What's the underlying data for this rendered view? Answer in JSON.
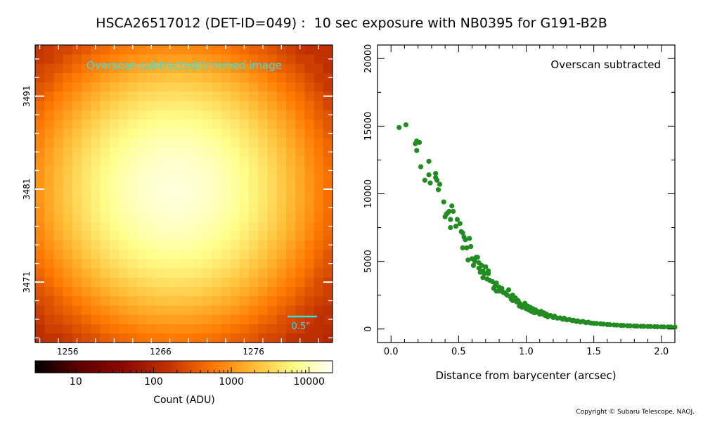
{
  "title": "HSCA26517012 (DET-ID=049) :  10 sec exposure with NB0395 for G191-B2B",
  "copyright": "Copyright © Subaru Telescope, NAOJ.",
  "colors": {
    "annotation": "#33e0e6",
    "scatter_points": "#228b22",
    "colormap": [
      "#000000",
      "#5a0000",
      "#8b0a00",
      "#c23200",
      "#ff7800",
      "#ffc23c",
      "#ffff8c",
      "#ffffff"
    ]
  },
  "chart_data": [
    {
      "type": "heatmap",
      "annotation": "Overscan-subtracted/trimmed image",
      "scale_bar_label": "0.5\"",
      "x_ticks": [
        "1256",
        "1266",
        "1276"
      ],
      "y_ticks": [
        "3491",
        "3481",
        "3471"
      ],
      "xlim": [
        1252.5,
        1284.5
      ],
      "ylim": [
        3464.5,
        3496.5
      ],
      "peak_center": {
        "x": 1267.5,
        "y": 3481.0
      },
      "colorbar": {
        "scale": "log",
        "range": [
          3,
          20000
        ],
        "ticks": [
          "10",
          "100",
          "1000",
          "10000"
        ],
        "label": "Count (ADU)"
      }
    },
    {
      "type": "scatter",
      "annotation": "Overscan subtracted",
      "xlabel": "Distance from barycenter (arcsec)",
      "ylabel": "",
      "xlim": [
        -0.1,
        2.1
      ],
      "ylim": [
        -1000,
        21000
      ],
      "x_ticks": [
        "0.0",
        "0.5",
        "1.0",
        "1.5",
        "2.0"
      ],
      "y_ticks": [
        "0",
        "5000",
        "10000",
        "15000",
        "20000"
      ],
      "grid": false,
      "points": [
        [
          0.06,
          14900
        ],
        [
          0.11,
          15100
        ],
        [
          0.18,
          13700
        ],
        [
          0.19,
          13900
        ],
        [
          0.19,
          13200
        ],
        [
          0.21,
          13800
        ],
        [
          0.22,
          12000
        ],
        [
          0.25,
          11000
        ],
        [
          0.28,
          12400
        ],
        [
          0.28,
          11400
        ],
        [
          0.29,
          10800
        ],
        [
          0.33,
          11500
        ],
        [
          0.33,
          11200
        ],
        [
          0.34,
          11000
        ],
        [
          0.35,
          10300
        ],
        [
          0.36,
          10700
        ],
        [
          0.39,
          9400
        ],
        [
          0.4,
          8300
        ],
        [
          0.41,
          8500
        ],
        [
          0.42,
          8600
        ],
        [
          0.43,
          8700
        ],
        [
          0.44,
          8100
        ],
        [
          0.44,
          7500
        ],
        [
          0.45,
          9100
        ],
        [
          0.46,
          8700
        ],
        [
          0.48,
          7600
        ],
        [
          0.49,
          8100
        ],
        [
          0.51,
          7800
        ],
        [
          0.52,
          7200
        ],
        [
          0.53,
          7100
        ],
        [
          0.53,
          6000
        ],
        [
          0.54,
          6800
        ],
        [
          0.55,
          6600
        ],
        [
          0.56,
          6000
        ],
        [
          0.57,
          5100
        ],
        [
          0.58,
          6700
        ],
        [
          0.59,
          6100
        ],
        [
          0.6,
          5200
        ],
        [
          0.61,
          4700
        ],
        [
          0.62,
          5000
        ],
        [
          0.63,
          5300
        ],
        [
          0.64,
          5300
        ],
        [
          0.65,
          4900
        ],
        [
          0.65,
          4500
        ],
        [
          0.66,
          4200
        ],
        [
          0.67,
          4700
        ],
        [
          0.68,
          4300
        ],
        [
          0.68,
          3800
        ],
        [
          0.69,
          4100
        ],
        [
          0.7,
          4600
        ],
        [
          0.71,
          3700
        ],
        [
          0.72,
          4300
        ],
        [
          0.72,
          4100
        ],
        [
          0.73,
          3600
        ],
        [
          0.75,
          3500
        ],
        [
          0.76,
          3000
        ],
        [
          0.77,
          3200
        ],
        [
          0.78,
          3400
        ],
        [
          0.78,
          2800
        ],
        [
          0.8,
          3100
        ],
        [
          0.8,
          2800
        ],
        [
          0.82,
          3000
        ],
        [
          0.83,
          2700
        ],
        [
          0.84,
          2700
        ],
        [
          0.85,
          2600
        ],
        [
          0.86,
          2500
        ],
        [
          0.87,
          2900
        ],
        [
          0.88,
          2400
        ],
        [
          0.89,
          2200
        ],
        [
          0.9,
          2500
        ],
        [
          0.9,
          2100
        ],
        [
          0.92,
          2300
        ],
        [
          0.93,
          2000
        ],
        [
          0.94,
          2100
        ],
        [
          0.95,
          1900
        ],
        [
          0.95,
          1700
        ],
        [
          0.96,
          1800
        ],
        [
          0.97,
          1600
        ],
        [
          0.98,
          1700
        ],
        [
          0.99,
          1900
        ],
        [
          1.0,
          1500
        ],
        [
          1.01,
          1700
        ],
        [
          1.02,
          1400
        ],
        [
          1.03,
          1600
        ],
        [
          1.04,
          1300
        ],
        [
          1.05,
          1500
        ],
        [
          1.06,
          1200
        ],
        [
          1.07,
          1400
        ],
        [
          1.08,
          1300
        ],
        [
          1.09,
          1200
        ],
        [
          1.1,
          1100
        ],
        [
          1.11,
          1300
        ],
        [
          1.12,
          1100
        ],
        [
          1.13,
          1200
        ],
        [
          1.14,
          1000
        ],
        [
          1.15,
          1100
        ],
        [
          1.16,
          900
        ],
        [
          1.18,
          1000
        ],
        [
          1.2,
          850
        ],
        [
          1.21,
          950
        ],
        [
          1.23,
          800
        ],
        [
          1.25,
          820
        ],
        [
          1.27,
          720
        ],
        [
          1.28,
          800
        ],
        [
          1.3,
          680
        ],
        [
          1.32,
          700
        ],
        [
          1.34,
          620
        ],
        [
          1.35,
          650
        ],
        [
          1.37,
          560
        ],
        [
          1.38,
          600
        ],
        [
          1.4,
          520
        ],
        [
          1.42,
          560
        ],
        [
          1.44,
          480
        ],
        [
          1.46,
          500
        ],
        [
          1.48,
          440
        ],
        [
          1.5,
          420
        ],
        [
          1.52,
          410
        ],
        [
          1.55,
          380
        ],
        [
          1.57,
          360
        ],
        [
          1.6,
          330
        ],
        [
          1.62,
          320
        ],
        [
          1.65,
          300
        ],
        [
          1.67,
          290
        ],
        [
          1.7,
          270
        ],
        [
          1.72,
          260
        ],
        [
          1.75,
          240
        ],
        [
          1.77,
          235
        ],
        [
          1.8,
          220
        ],
        [
          1.82,
          210
        ],
        [
          1.85,
          200
        ],
        [
          1.87,
          195
        ],
        [
          1.9,
          185
        ],
        [
          1.92,
          180
        ],
        [
          1.95,
          170
        ],
        [
          1.97,
          165
        ],
        [
          2.0,
          160
        ],
        [
          2.02,
          155
        ],
        [
          2.05,
          150
        ],
        [
          2.07,
          145
        ],
        [
          2.1,
          140
        ]
      ]
    }
  ]
}
